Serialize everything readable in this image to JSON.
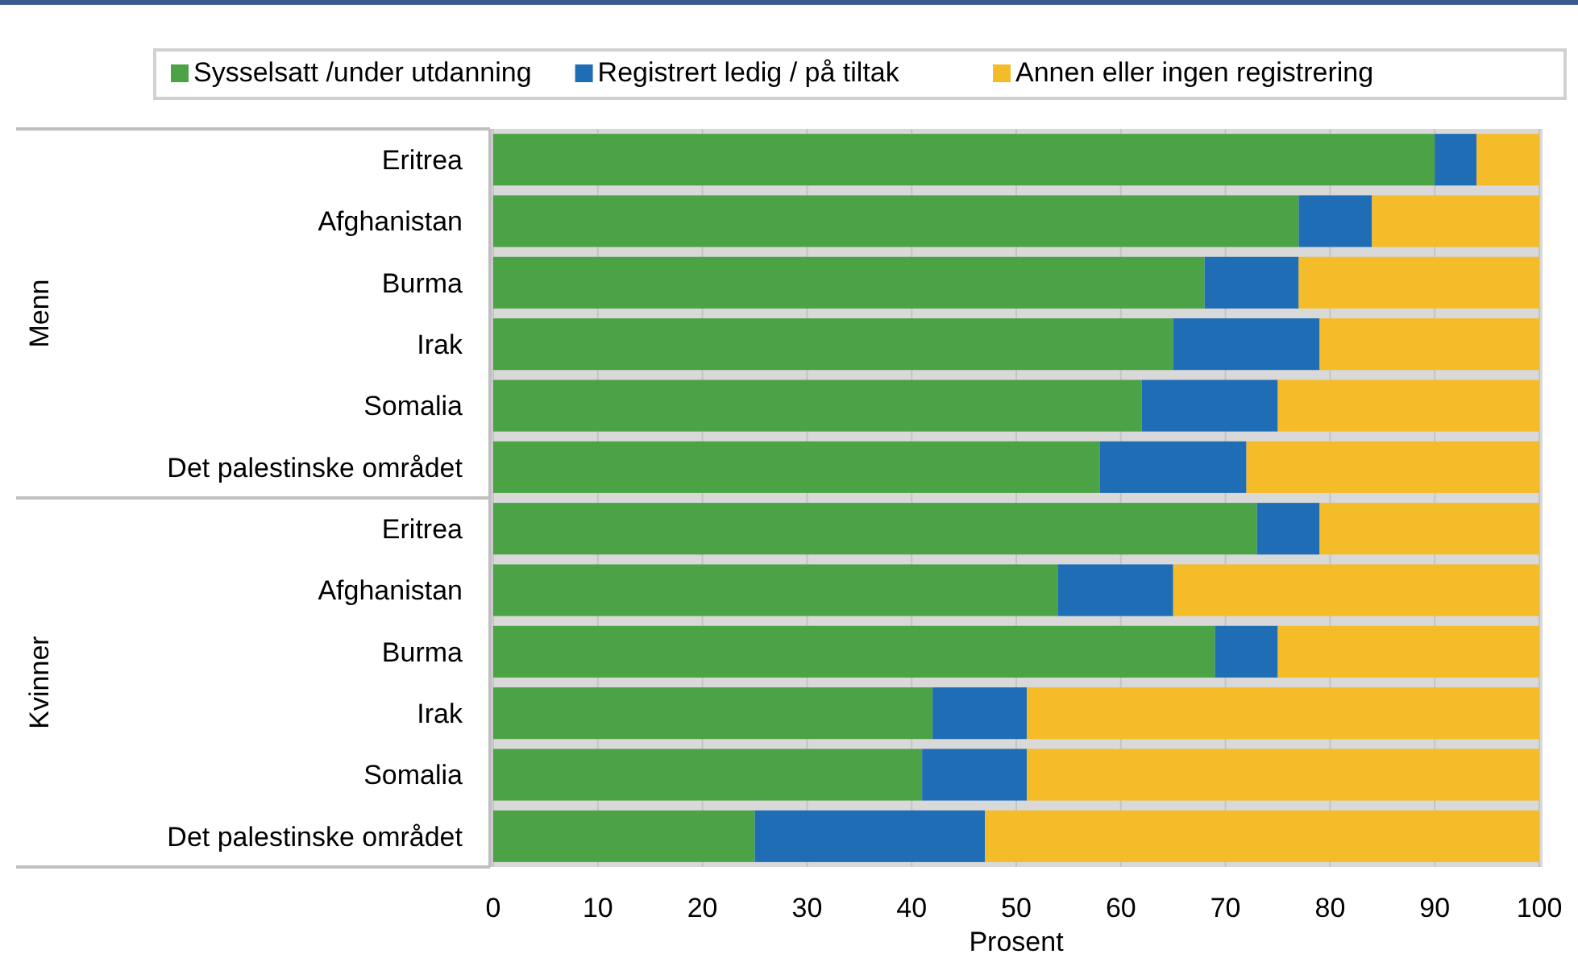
{
  "chart_data": {
    "type": "bar",
    "orientation": "horizontal",
    "stacked": true,
    "xlabel": "Prosent",
    "categories": [
      "Eritrea",
      "Afghanistan",
      "Burma",
      "Irak",
      "Somalia",
      "Det palestinske området",
      "Eritrea",
      "Afghanistan",
      "Burma",
      "Irak",
      "Somalia",
      "Det palestinske området"
    ],
    "series": [
      {
        "name": "Sysselsatt /under utdanning",
        "color": "#4ca346",
        "values": [
          90,
          77,
          68,
          65,
          62,
          58,
          73,
          54,
          69,
          42,
          41,
          25
        ]
      },
      {
        "name": "Registrert ledig / på tiltak",
        "color": "#1f6eb5",
        "values": [
          4,
          7,
          9,
          14,
          13,
          14,
          6,
          11,
          6,
          9,
          10,
          22
        ]
      },
      {
        "name": "Annen eller ingen registrering",
        "color": "#f5bc2a",
        "values": [
          6,
          16,
          23,
          21,
          25,
          28,
          21,
          35,
          25,
          49,
          49,
          53
        ]
      }
    ],
    "annotations": [
      "Menn",
      "Kvinner"
    ],
    "xlim": [
      0,
      100
    ],
    "xticks": [
      0,
      10,
      20,
      30,
      40,
      50,
      60,
      70,
      80,
      90,
      100
    ],
    "grid": "x",
    "legend": "top"
  }
}
